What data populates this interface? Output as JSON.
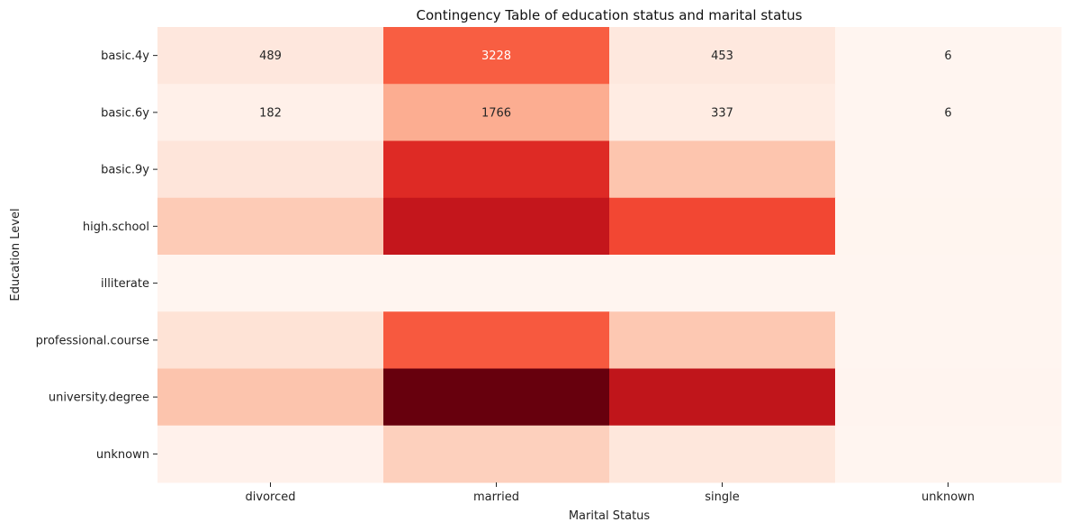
{
  "chart_data": {
    "type": "heatmap",
    "title": "Contingency Table of education status and marital status",
    "xlabel": "Marital Status",
    "ylabel": "Education Level",
    "x_categories": [
      "divorced",
      "married",
      "single",
      "unknown"
    ],
    "y_categories": [
      "basic.4y",
      "basic.6y",
      "basic.9y",
      "high.school",
      "illiterate",
      "professional.course",
      "university.degree",
      "unknown"
    ],
    "values": [
      [
        489,
        3228,
        453,
        6
      ],
      [
        182,
        1766,
        337,
        6
      ],
      [
        565,
        4156,
        1316,
        8
      ],
      [
        1193,
        4683,
        3603,
        18
      ],
      [
        2,
        12,
        5,
        0
      ],
      [
        657,
        3301,
        1256,
        8
      ],
      [
        1337,
        6062,
        4757,
        23
      ],
      [
        132,
        1084,
        512,
        3
      ]
    ],
    "annotated_cells": [
      [
        0,
        0
      ],
      [
        0,
        1
      ],
      [
        0,
        2
      ],
      [
        0,
        3
      ],
      [
        1,
        0
      ],
      [
        1,
        1
      ],
      [
        1,
        2
      ],
      [
        1,
        3
      ]
    ],
    "colormap": "Reds",
    "vmin": 0,
    "vmax": 6062,
    "colorbar": false,
    "grid": false,
    "legend": "none"
  }
}
